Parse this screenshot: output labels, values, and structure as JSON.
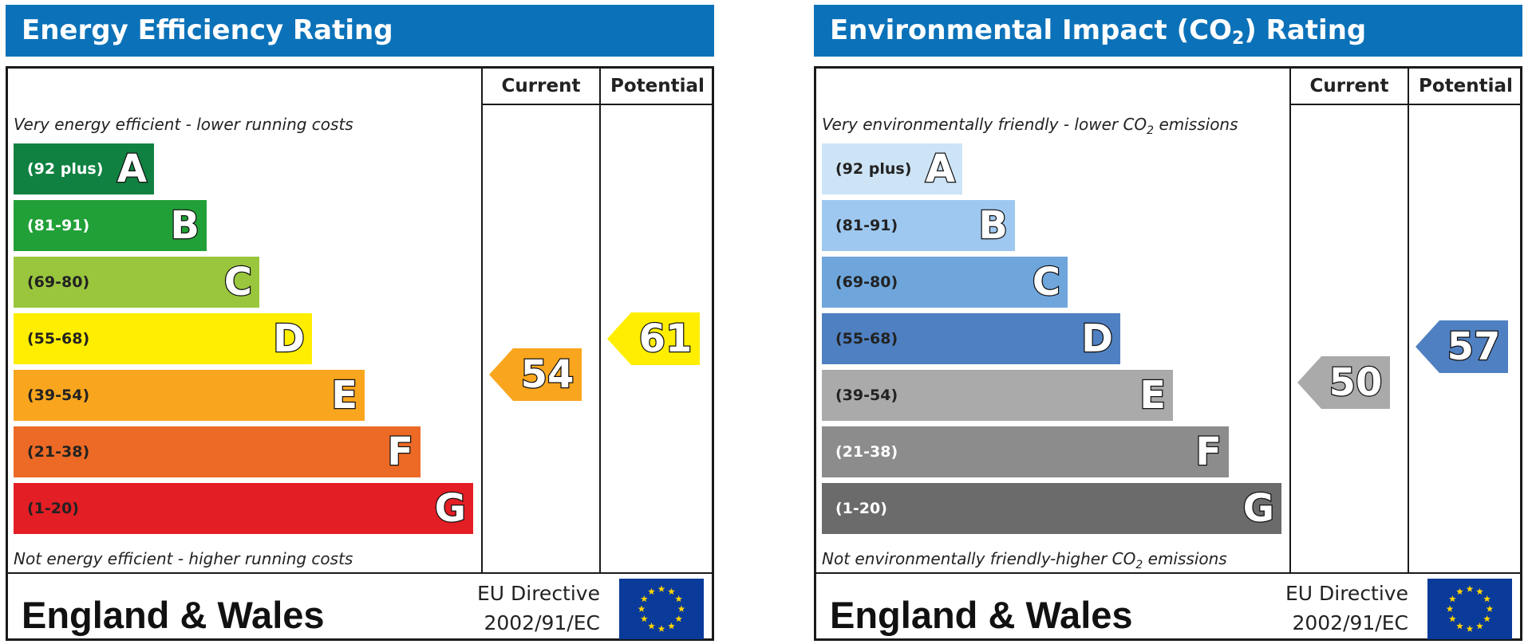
{
  "charts": [
    {
      "title_prefix": "Energy Efficiency Rating",
      "title_sub": "",
      "title_suffix": "",
      "col_current": "Current",
      "col_potential": "Potential",
      "top_note": "Very energy efficient - lower running costs",
      "top_note_sub": "",
      "top_note_tail": "",
      "bottom_note": "Not energy efficient - higher running costs",
      "bottom_note_sub": "",
      "bottom_note_tail": "",
      "bands": [
        {
          "range": "(92 plus)",
          "letter": "A",
          "color": "#108141",
          "text_color": "#ffffff"
        },
        {
          "range": "(81-91)",
          "letter": "B",
          "color": "#22a038",
          "text_color": "#ffffff"
        },
        {
          "range": "(69-80)",
          "letter": "C",
          "color": "#9ac63d",
          "text_color": "#222222"
        },
        {
          "range": "(55-68)",
          "letter": "D",
          "color": "#ffee00",
          "text_color": "#222222"
        },
        {
          "range": "(39-54)",
          "letter": "E",
          "color": "#f9a61e",
          "text_color": "#222222"
        },
        {
          "range": "(21-38)",
          "letter": "F",
          "color": "#ec6a25",
          "text_color": "#222222"
        },
        {
          "range": "(1-20)",
          "letter": "G",
          "color": "#e31e24",
          "text_color": "#222222"
        }
      ],
      "current": {
        "value": "54",
        "band": "E",
        "color": "#f9a61e"
      },
      "potential": {
        "value": "61",
        "band": "D",
        "color": "#ffee00"
      },
      "region": "England & Wales",
      "directive_line1": "EU Directive",
      "directive_line2": "2002/91/EC"
    },
    {
      "title_prefix": "Environmental Impact (CO",
      "title_sub": "2",
      "title_suffix": ") Rating",
      "col_current": "Current",
      "col_potential": "Potential",
      "top_note": "Very environmentally friendly - lower CO",
      "top_note_sub": "2",
      "top_note_tail": " emissions",
      "bottom_note": "Not environmentally friendly-higher CO",
      "bottom_note_sub": "2",
      "bottom_note_tail": " emissions",
      "bands": [
        {
          "range": "(92 plus)",
          "letter": "A",
          "color": "#cde4f6",
          "text_color": "#222222"
        },
        {
          "range": "(81-91)",
          "letter": "B",
          "color": "#9ec8ef",
          "text_color": "#222222"
        },
        {
          "range": "(69-80)",
          "letter": "C",
          "color": "#6ea6dc",
          "text_color": "#222222"
        },
        {
          "range": "(55-68)",
          "letter": "D",
          "color": "#4f80c2",
          "text_color": "#222222"
        },
        {
          "range": "(39-54)",
          "letter": "E",
          "color": "#aaaaaa",
          "text_color": "#222222"
        },
        {
          "range": "(21-38)",
          "letter": "F",
          "color": "#8c8c8c",
          "text_color": "#ffffff"
        },
        {
          "range": "(1-20)",
          "letter": "G",
          "color": "#6b6b6b",
          "text_color": "#ffffff"
        }
      ],
      "current": {
        "value": "50",
        "band": "E",
        "color": "#aaaaaa"
      },
      "potential": {
        "value": "57",
        "band": "D",
        "color": "#4f80c2"
      },
      "region": "England & Wales",
      "directive_line1": "EU Directive",
      "directive_line2": "2002/91/EC"
    }
  ]
}
